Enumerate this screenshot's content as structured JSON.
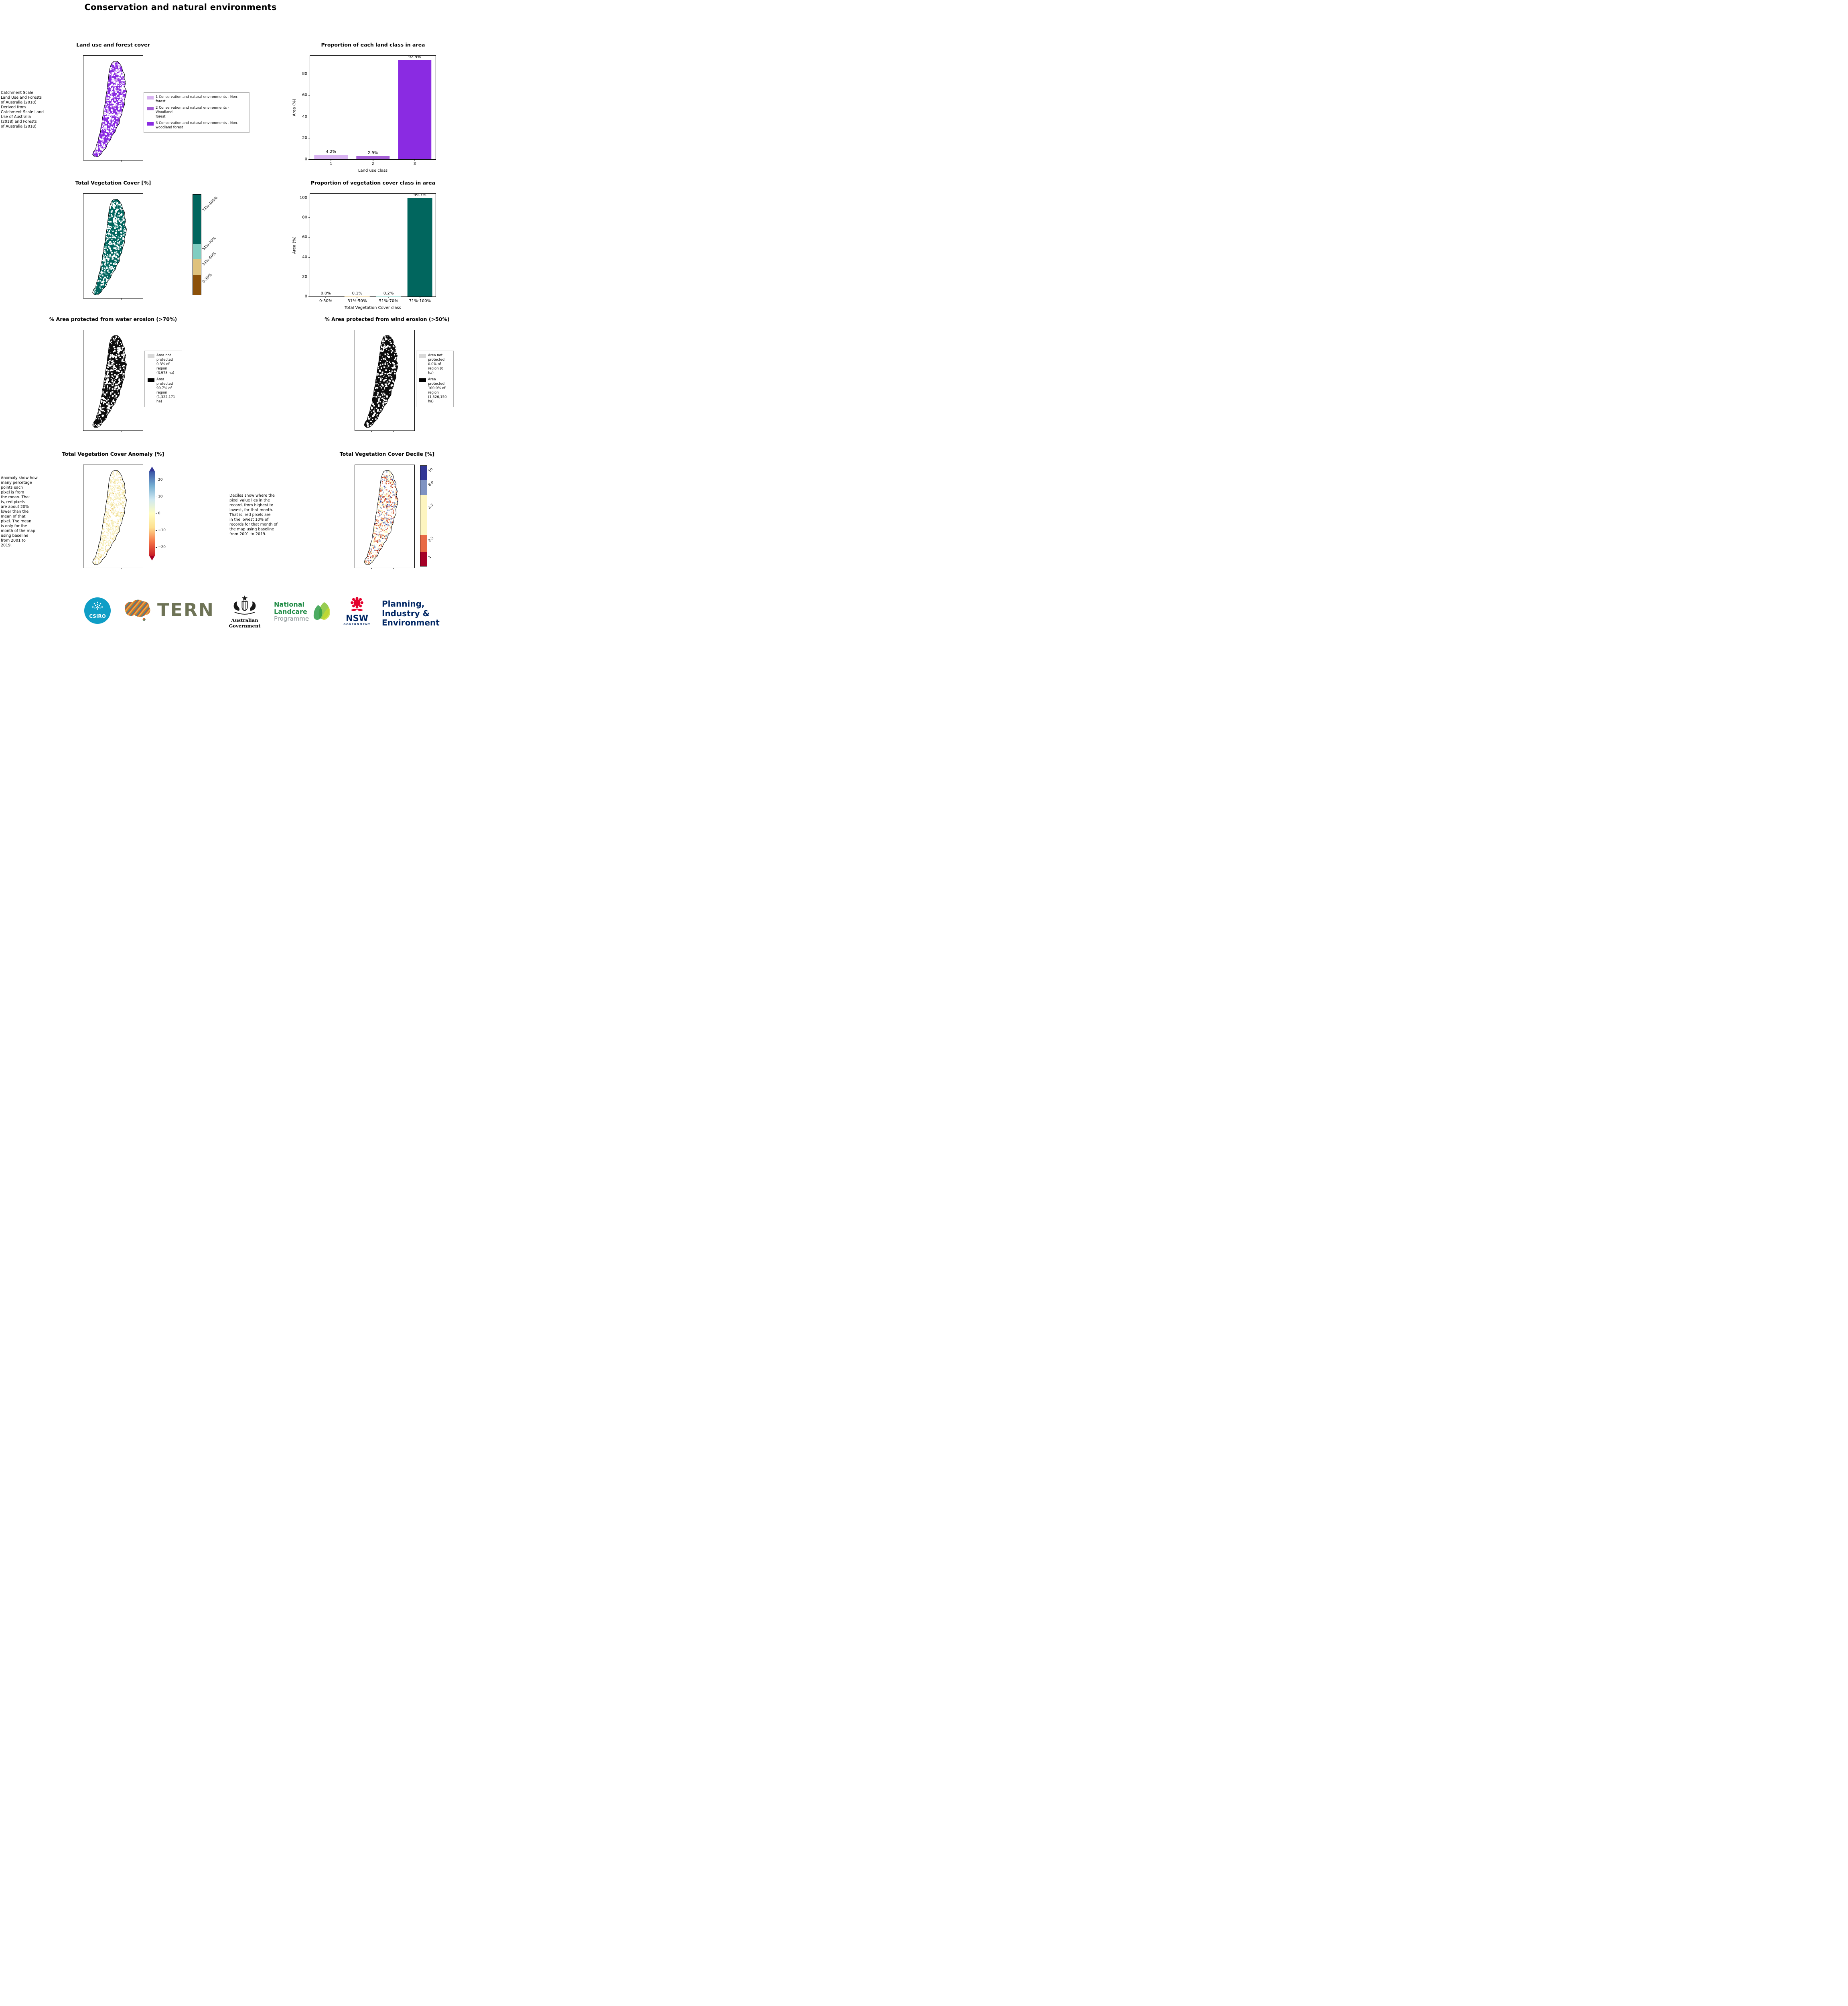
{
  "page": {
    "title": "Conservation and natural environments"
  },
  "land_use": {
    "title": "Land use and forest cover",
    "note": " Catchment Scale\nLand Use and Forests\nof Australia (2018)\nDerived from\nCatchment Scale Land\nUse of Australia\n(2018) and Forests\nof Australia (2018)",
    "legend": [
      {
        "label": "1 Conservation and natural environments - Non-\nforest",
        "color": "#d9b3f2"
      },
      {
        "label": "2 Conservation and natural environments - Woodland\nforest",
        "color": "#a55fd6"
      },
      {
        "label": "3 Conservation and natural environments - Non-\nwoodland forest",
        "color": "#8a2be2"
      }
    ],
    "map": {
      "base": "#8a2be2",
      "speckles": [
        {
          "color": "#ffffff",
          "count": 1250,
          "size": 3
        },
        {
          "color": "#d9b3f2",
          "count": 260,
          "size": 2.6
        },
        {
          "color": "#b469e0",
          "count": 140,
          "size": 2.4
        }
      ]
    }
  },
  "veg_cover": {
    "title": "Total Vegetation Cover [%]",
    "map": {
      "base": "#01665e",
      "speckles": [
        {
          "color": "#ffffff",
          "count": 1200,
          "size": 3
        },
        {
          "color": "#80cdc1",
          "count": 90,
          "size": 2.4
        }
      ]
    },
    "colorbar": [
      {
        "label": "71%-100%",
        "color": "#01665e",
        "pct": 49
      },
      {
        "label": "51%-70%",
        "color": "#80cdc1",
        "pct": 15
      },
      {
        "label": "31%-50%",
        "color": "#dfc27d",
        "pct": 16
      },
      {
        "label": "0-30%",
        "color": "#8c510a",
        "pct": 20
      }
    ]
  },
  "water_erosion": {
    "title": "% Area protected from water erosion (>70%)",
    "map": {
      "base": "#0d0d0d",
      "speckles": [
        {
          "color": "#ffffff",
          "count": 1050,
          "size": 3
        }
      ]
    },
    "legend": [
      {
        "label": "Area not\nprotected\n0.3% of\nregion\n(3,978 ha)",
        "color": "#d9d9d9"
      },
      {
        "label": "Area\nprotected\n99.7% of\nregion\n(1,322,171\nha)",
        "color": "#000000"
      }
    ]
  },
  "wind_erosion": {
    "title": "% Area protected from wind erosion (>50%)",
    "map": {
      "base": "#0d0d0d",
      "speckles": [
        {
          "color": "#ffffff",
          "count": 850,
          "size": 3
        }
      ]
    },
    "legend": [
      {
        "label": "Area not\nprotected\n0.0% of\nregion (0\nha)",
        "color": "#d9d9d9"
      },
      {
        "label": "Area\nprotected\n100.0% of\nregion\n(1,326,150\nha)",
        "color": "#000000"
      }
    ]
  },
  "anomaly": {
    "title": "Total Vegetation Cover Anomaly [%]",
    "note": "Anomaly show how\nmany percetage\npoints each\npixel is from\nthe mean. That\nis, red pixels\nare about 20%\nlower than the\nmean of that\npixel. The mean\nis only for the\nmonth of the map\nusing baseline\nfrom 2001 to\n2019.",
    "map": {
      "base": "#ffffff",
      "speckles": [
        {
          "color": "#f8f0c0",
          "count": 1400,
          "size": 2.6
        },
        {
          "color": "#f0dc94",
          "count": 350,
          "size": 2.2
        },
        {
          "color": "#e8be66",
          "count": 90,
          "size": 2
        }
      ]
    },
    "colorbar": {
      "ticks": [
        20,
        10,
        0,
        -10,
        -20
      ],
      "range": [
        -25,
        25
      ],
      "top_color": "#313695",
      "bottom_color": "#a50026",
      "stops": [
        "#3a54a5",
        "#74add1",
        "#cfe8f1",
        "#fffdc0",
        "#fee090",
        "#f57547",
        "#c91e27"
      ]
    }
  },
  "decile": {
    "title": "Total Vegetation Cover Decile [%]",
    "note": "Deciles show where the\npixel value lies in the\nrecord, from highest to\nlowest, for that month.\nThat is, red pixels are\nin the lowest 10% of\nrecords for that month of\nthe map using baseline\nfrom 2001 to 2019.",
    "map": {
      "base": "#ffffff",
      "speckles": [
        {
          "color": "#fdf6c0",
          "count": 850,
          "size": 2.6
        },
        {
          "color": "#e2714c",
          "count": 460,
          "size": 2.4
        },
        {
          "color": "#b5301e",
          "count": 170,
          "size": 2.2
        },
        {
          "color": "#92a2ca",
          "count": 300,
          "size": 2.4
        },
        {
          "color": "#3a4fa0",
          "count": 90,
          "size": 2.2
        }
      ]
    },
    "colorbar": [
      {
        "label": "10",
        "color": "#313695",
        "pct": 14
      },
      {
        "label": "8-9",
        "color": "#7f93c2",
        "pct": 15
      },
      {
        "label": "4-7",
        "color": "#fdf5c0",
        "pct": 40
      },
      {
        "label": "2-3",
        "color": "#e86a45",
        "pct": 17
      },
      {
        "label": "1",
        "color": "#a50026",
        "pct": 14
      }
    ]
  },
  "chart_data": [
    {
      "type": "bar",
      "title": "Proportion of each land class in area",
      "categories": [
        "1",
        "2",
        "3"
      ],
      "values": [
        4.2,
        2.9,
        92.9
      ],
      "labels": [
        "4.2%",
        "2.9%",
        "92.9%"
      ],
      "bar_colors": [
        "#d9b3f2",
        "#a55fd6",
        "#8a2be2"
      ],
      "xlabel": "Land use class",
      "ylabel": "Area (%)",
      "yticks": [
        0,
        20,
        40,
        60,
        80
      ],
      "ylim": [
        0,
        97
      ],
      "grid": false,
      "legend_position": "none"
    },
    {
      "type": "bar",
      "title": "Proportion of vegetation cover class in area",
      "categories": [
        "0-30%",
        "31%-50%",
        "51%-70%",
        "71%-100%"
      ],
      "values": [
        0.0,
        0.1,
        0.2,
        99.7
      ],
      "labels": [
        "0.0%",
        "0.1%",
        "0.2%",
        "99.7%"
      ],
      "bar_colors": [
        "#8c510a",
        "#dfc27d",
        "#80cdc1",
        "#01665e"
      ],
      "xlabel": "Total Vegetation Cover class",
      "ylabel": "Area (%)",
      "yticks": [
        0,
        20,
        40,
        60,
        80,
        100
      ],
      "ylim": [
        0,
        104
      ],
      "grid": false,
      "legend_position": "none"
    }
  ],
  "logos": {
    "csiro": {
      "text": "CSIRO",
      "color": "#0f9ec6"
    },
    "tern": {
      "text": "TERN",
      "color": "#6e7356"
    },
    "aus_gov": {
      "text": "Australian Government"
    },
    "landcare": {
      "line1": "National",
      "line2": "Landcare",
      "line3": "Programme",
      "green": "#1e8a44",
      "gray": "#8b9496"
    },
    "nsw": {
      "text": "NSW",
      "sub": "GOVERNMENT",
      "navy": "#002664",
      "red": "#e4002b"
    },
    "planning": {
      "lines": [
        "Planning,",
        "Industry &",
        "Environment"
      ],
      "color": "#002664"
    }
  }
}
